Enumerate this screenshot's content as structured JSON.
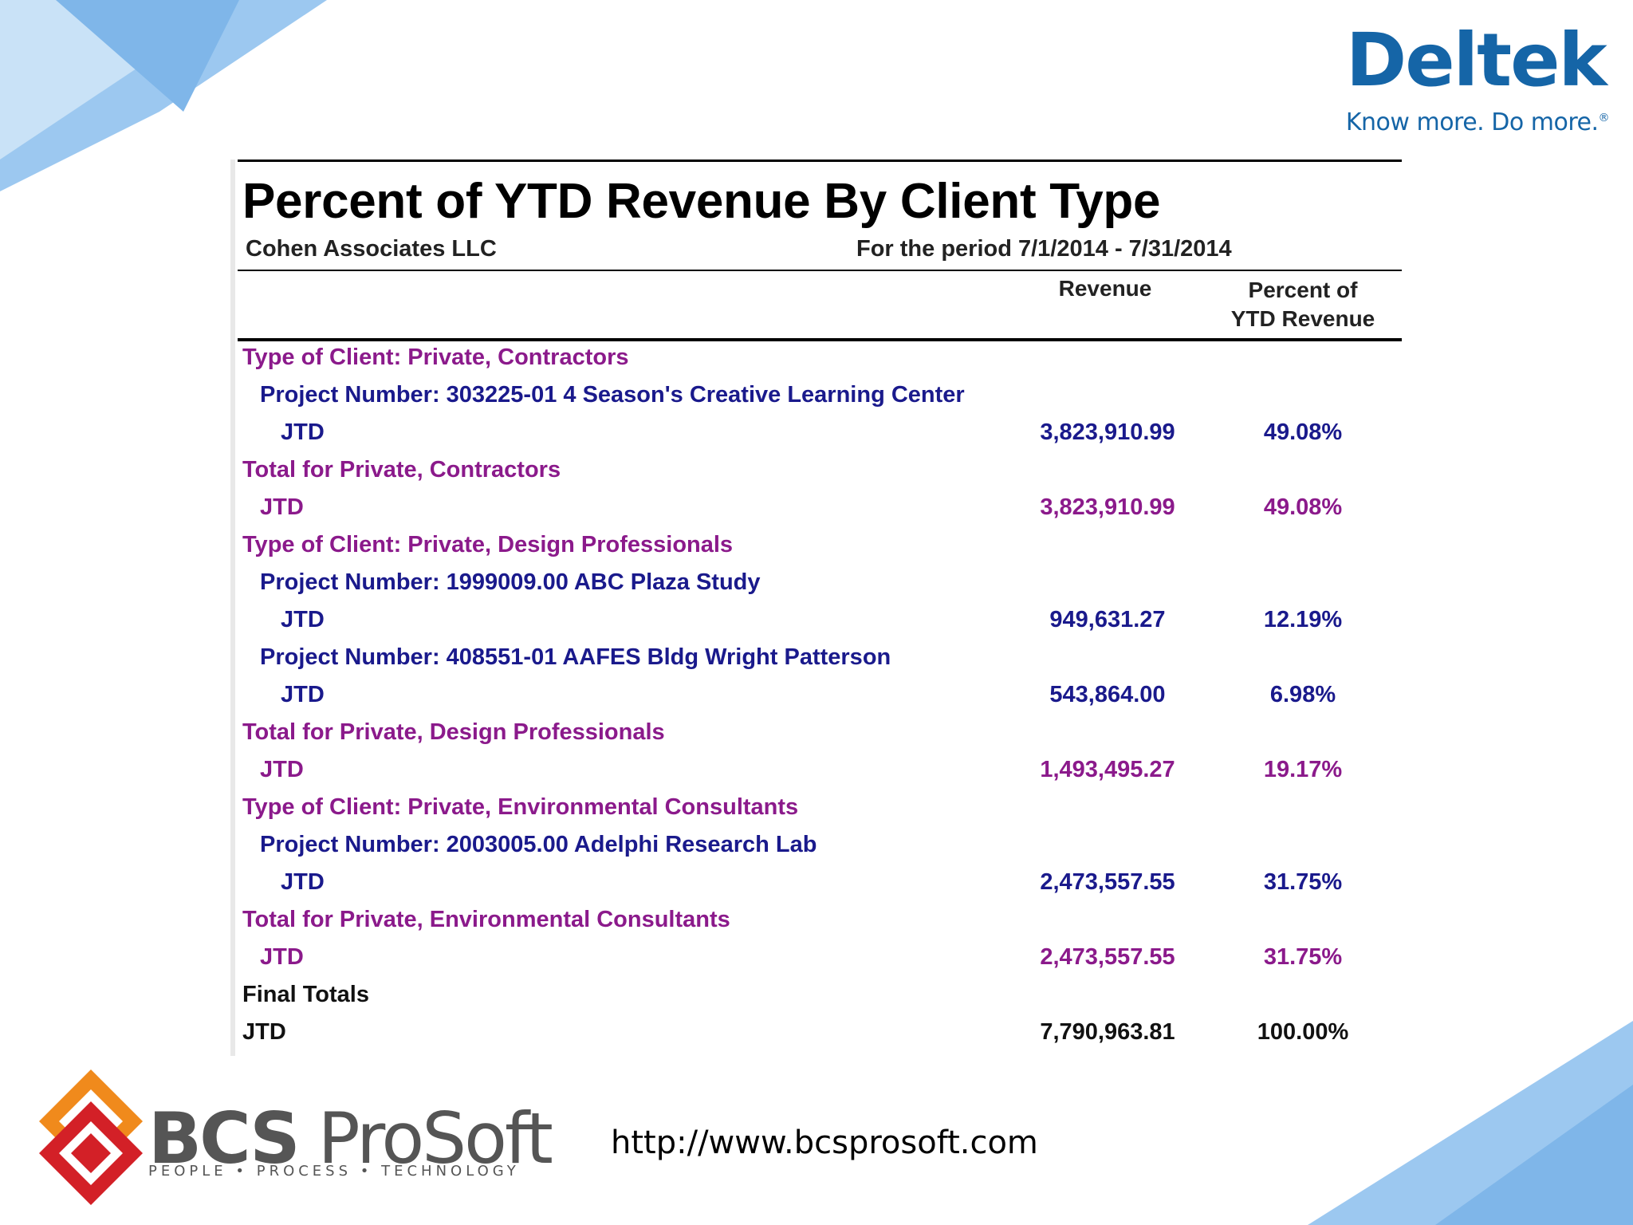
{
  "brand": {
    "name": "Deltek",
    "tagline": "Know more. Do more.",
    "tagline_mark": "®"
  },
  "report": {
    "title": "Percent of YTD Revenue By Client Type",
    "company": "Cohen Associates LLC",
    "period": "For the period 7/1/2014 - 7/31/2014",
    "columns": {
      "revenue": "Revenue",
      "percent_line1": "Percent of",
      "percent_line2": "YTD Revenue"
    },
    "rows": [
      {
        "kind": "group",
        "label": "Type of Client: Private, Contractors"
      },
      {
        "kind": "project",
        "label": "Project Number: 303225-01 4 Season's Creative Learning Center"
      },
      {
        "kind": "project-jtd",
        "label": "JTD",
        "revenue": "3,823,910.99",
        "percent": "49.08%"
      },
      {
        "kind": "total",
        "label": "Total for Private, Contractors"
      },
      {
        "kind": "total-jtd",
        "label": "JTD",
        "revenue": "3,823,910.99",
        "percent": "49.08%"
      },
      {
        "kind": "group",
        "label": "Type of Client: Private, Design Professionals"
      },
      {
        "kind": "project",
        "label": "Project Number: 1999009.00 ABC Plaza Study"
      },
      {
        "kind": "project-jtd",
        "label": "JTD",
        "revenue": "949,631.27",
        "percent": "12.19%"
      },
      {
        "kind": "project",
        "label": "Project Number: 408551-01 AAFES Bldg Wright Patterson"
      },
      {
        "kind": "project-jtd",
        "label": "JTD",
        "revenue": "543,864.00",
        "percent": "6.98%"
      },
      {
        "kind": "total",
        "label": "Total for Private, Design Professionals"
      },
      {
        "kind": "total-jtd",
        "label": "JTD",
        "revenue": "1,493,495.27",
        "percent": "19.17%"
      },
      {
        "kind": "group",
        "label": "Type of Client: Private, Environmental Consultants"
      },
      {
        "kind": "project",
        "label": "Project Number: 2003005.00 Adelphi Research Lab"
      },
      {
        "kind": "project-jtd",
        "label": "JTD",
        "revenue": "2,473,557.55",
        "percent": "31.75%"
      },
      {
        "kind": "total",
        "label": "Total for Private, Environmental Consultants"
      },
      {
        "kind": "total-jtd",
        "label": "JTD",
        "revenue": "2,473,557.55",
        "percent": "31.75%"
      },
      {
        "kind": "final",
        "label": "Final Totals"
      },
      {
        "kind": "final-jtd",
        "label": "JTD",
        "revenue": "7,790,963.81",
        "percent": "100.00%"
      }
    ]
  },
  "footer": {
    "logo_bold": "BCS",
    "logo_light": "ProSoft",
    "logo_sub": "PEOPLE • PROCESS • TECHNOLOGY",
    "url": "http://www.bcsprosoft.com"
  },
  "colors": {
    "group": "#8b1a8b",
    "project": "#1a1a8c",
    "brand_blue": "#1565a7"
  }
}
